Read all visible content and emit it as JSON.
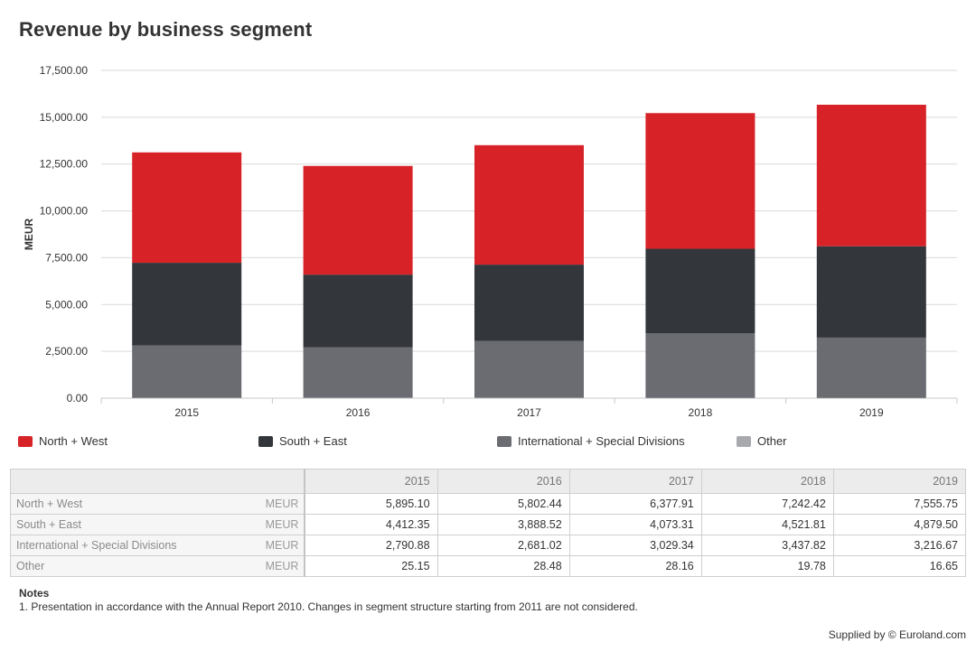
{
  "chart_data": {
    "type": "bar",
    "stacked": true,
    "title": "Revenue by business segment",
    "ylabel": "MEUR",
    "xlabel": "",
    "ylim": [
      0,
      17500
    ],
    "yticks": [
      "0.00",
      "2,500.00",
      "5,000.00",
      "7,500.00",
      "10,000.00",
      "12,500.00",
      "15,000.00",
      "17,500.00"
    ],
    "ytick_values": [
      0,
      2500,
      5000,
      7500,
      10000,
      12500,
      15000,
      17500
    ],
    "categories": [
      "2015",
      "2016",
      "2017",
      "2018",
      "2019"
    ],
    "series": [
      {
        "name": "Other",
        "color": "#a7a9ac",
        "values": [
          25.15,
          28.48,
          28.16,
          19.78,
          16.65
        ]
      },
      {
        "name": "International + Special Divisions",
        "color": "#6a6c71",
        "values": [
          2790.88,
          2681.02,
          3029.34,
          3437.82,
          3216.67
        ]
      },
      {
        "name": "South + East",
        "color": "#33363b",
        "values": [
          4412.35,
          3888.52,
          4073.31,
          4521.81,
          4879.5
        ]
      },
      {
        "name": "North + West",
        "color": "#d72328",
        "values": [
          5895.1,
          5802.44,
          6377.91,
          7242.42,
          7555.75
        ]
      }
    ],
    "legend": [
      {
        "name": "North + West",
        "color": "#d72328"
      },
      {
        "name": "South + East",
        "color": "#33363b"
      },
      {
        "name": "International + Special Divisions",
        "color": "#6a6c71"
      },
      {
        "name": "Other",
        "color": "#a7a9ac"
      }
    ]
  },
  "table": {
    "columns": [
      "2015",
      "2016",
      "2017",
      "2018",
      "2019"
    ],
    "rows": [
      {
        "label": "North + West",
        "unit": "MEUR",
        "values": [
          "5,895.10",
          "5,802.44",
          "6,377.91",
          "7,242.42",
          "7,555.75"
        ]
      },
      {
        "label": "South + East",
        "unit": "MEUR",
        "values": [
          "4,412.35",
          "3,888.52",
          "4,073.31",
          "4,521.81",
          "4,879.50"
        ]
      },
      {
        "label": "International + Special Divisions",
        "unit": "MEUR",
        "values": [
          "2,790.88",
          "2,681.02",
          "3,029.34",
          "3,437.82",
          "3,216.67"
        ]
      },
      {
        "label": "Other",
        "unit": "MEUR",
        "values": [
          "25.15",
          "28.48",
          "28.16",
          "19.78",
          "16.65"
        ]
      }
    ]
  },
  "notes": {
    "title": "Notes",
    "text": "1. Presentation in accordance with the Annual Report 2010. Changes in segment structure starting from 2011 are not considered."
  },
  "footer": {
    "supplied": "Supplied by © Euroland.com"
  }
}
